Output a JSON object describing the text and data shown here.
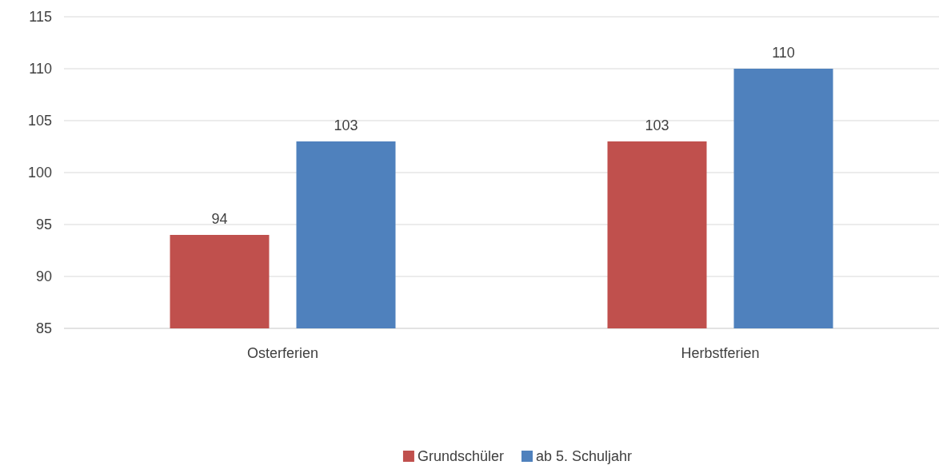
{
  "chart_data": {
    "type": "bar",
    "categories": [
      "Osterferien",
      "Herbstferien"
    ],
    "series": [
      {
        "name": "Grundschüler",
        "color": "#c0504d",
        "values": [
          94,
          103
        ]
      },
      {
        "name": "ab 5. Schuljahr",
        "color": "#4f81bd",
        "values": [
          103,
          110
        ]
      }
    ],
    "ylim": [
      85,
      115
    ],
    "yticks": [
      85,
      90,
      95,
      100,
      105,
      110,
      115
    ],
    "grid": "y",
    "legend": "bottom",
    "data_labels": true
  }
}
